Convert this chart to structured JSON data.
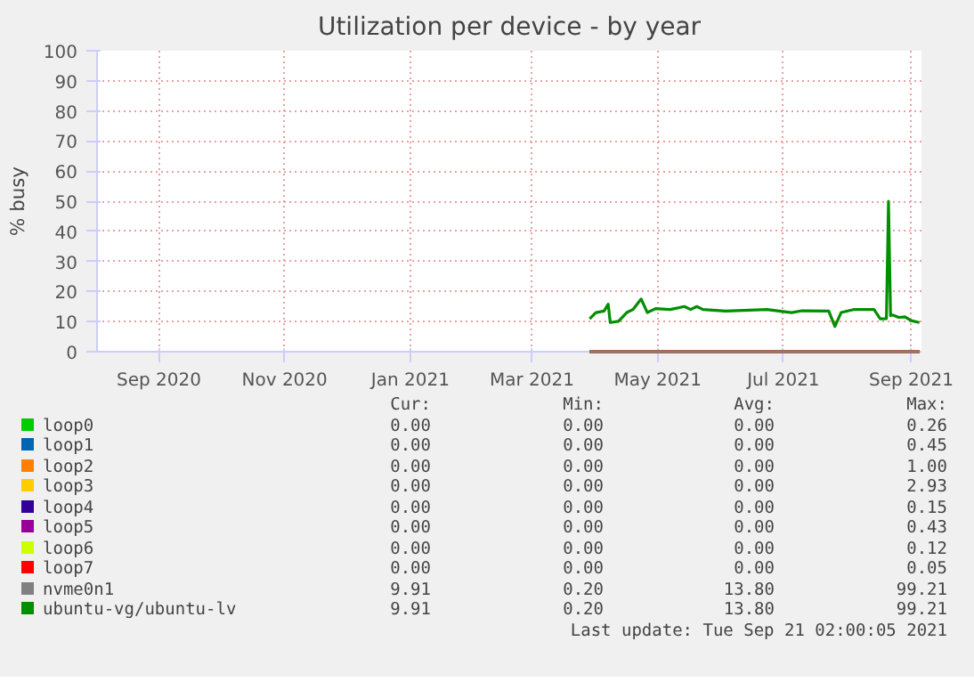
{
  "chart_data": {
    "type": "line",
    "title": "Utilization per device - by year",
    "ylabel": "% busy",
    "x": [
      "2021-04-13",
      "2021-04-16",
      "2021-04-20",
      "2021-04-22",
      "2021-04-23",
      "2021-04-27",
      "2021-05-01",
      "2021-05-04",
      "2021-05-08",
      "2021-05-11",
      "2021-05-15",
      "2021-05-22",
      "2021-05-29",
      "2021-06-01",
      "2021-06-04",
      "2021-06-07",
      "2021-06-18",
      "2021-07-08",
      "2021-07-20",
      "2021-07-25",
      "2021-08-07",
      "2021-08-10",
      "2021-08-13",
      "2021-08-19",
      "2021-08-29",
      "2021-09-01",
      "2021-09-04",
      "2021-09-05",
      "2021-09-06",
      "2021-09-07",
      "2021-09-10",
      "2021-09-13",
      "2021-09-16",
      "2021-09-20"
    ],
    "series": [
      {
        "name": "loop0",
        "color": "#00cc00",
        "values": [
          null,
          null,
          null,
          null,
          null,
          null,
          null,
          null,
          null,
          null,
          null,
          null,
          null,
          null,
          null,
          null,
          null,
          null,
          null,
          null,
          null,
          null,
          null,
          null,
          null,
          null,
          null,
          null,
          null,
          null,
          null,
          null,
          null,
          null
        ]
      },
      {
        "name": "loop1",
        "color": "#0066b3",
        "values": [
          null,
          null,
          null,
          null,
          null,
          null,
          null,
          null,
          null,
          null,
          null,
          null,
          null,
          null,
          null,
          null,
          null,
          null,
          null,
          null,
          null,
          null,
          null,
          null,
          null,
          null,
          null,
          null,
          null,
          null,
          null,
          null,
          null,
          null
        ]
      },
      {
        "name": "loop2",
        "color": "#ff8000",
        "values": [
          null,
          null,
          null,
          null,
          null,
          null,
          null,
          null,
          null,
          null,
          null,
          null,
          null,
          null,
          null,
          null,
          null,
          null,
          null,
          null,
          null,
          null,
          null,
          null,
          null,
          null,
          null,
          null,
          null,
          null,
          null,
          null,
          null,
          null
        ]
      },
      {
        "name": "loop3",
        "color": "#ffcc00",
        "values": [
          null,
          null,
          null,
          null,
          null,
          null,
          null,
          null,
          null,
          null,
          null,
          null,
          null,
          null,
          null,
          null,
          null,
          null,
          null,
          null,
          null,
          null,
          null,
          null,
          null,
          null,
          null,
          null,
          null,
          null,
          null,
          null,
          null,
          null
        ]
      },
      {
        "name": "loop4",
        "color": "#330099",
        "values": [
          null,
          null,
          null,
          null,
          null,
          null,
          null,
          null,
          null,
          null,
          null,
          null,
          null,
          null,
          null,
          null,
          null,
          null,
          null,
          null,
          null,
          null,
          null,
          null,
          null,
          null,
          null,
          null,
          null,
          null,
          null,
          null,
          null,
          null
        ]
      },
      {
        "name": "loop5",
        "color": "#990099",
        "values": [
          null,
          null,
          null,
          null,
          null,
          null,
          null,
          null,
          null,
          null,
          null,
          null,
          null,
          null,
          null,
          null,
          null,
          null,
          null,
          null,
          null,
          null,
          null,
          null,
          null,
          null,
          null,
          null,
          null,
          null,
          null,
          null,
          null,
          null
        ]
      },
      {
        "name": "loop6",
        "color": "#ccff00",
        "values": [
          null,
          null,
          null,
          null,
          null,
          null,
          null,
          null,
          null,
          null,
          null,
          null,
          null,
          null,
          null,
          null,
          null,
          null,
          null,
          null,
          null,
          null,
          null,
          null,
          null,
          null,
          null,
          null,
          null,
          null,
          null,
          null,
          null,
          null
        ]
      },
      {
        "name": "loop7",
        "color": "#ff0000",
        "values": [
          null,
          null,
          null,
          null,
          null,
          null,
          null,
          null,
          null,
          null,
          null,
          null,
          null,
          null,
          null,
          null,
          null,
          null,
          null,
          null,
          null,
          null,
          null,
          null,
          null,
          null,
          null,
          null,
          null,
          null,
          null,
          null,
          null,
          null
        ]
      },
      {
        "name": "nvme0n1",
        "color": "#808080",
        "values": [
          null,
          null,
          null,
          null,
          null,
          null,
          null,
          null,
          null,
          null,
          null,
          null,
          null,
          null,
          null,
          null,
          null,
          null,
          null,
          null,
          null,
          null,
          null,
          null,
          null,
          null,
          null,
          null,
          null,
          null,
          null,
          null,
          null,
          null
        ]
      },
      {
        "name": "ubuntu-vg/ubuntu-lv",
        "color": "#008f00",
        "values": [
          10.9,
          13.0,
          13.5,
          15.8,
          9.7,
          10.1,
          13.0,
          14,
          17.5,
          13,
          14.3,
          14,
          15,
          14,
          15,
          14,
          13.5,
          14,
          13,
          13.6,
          13.5,
          8.4,
          13,
          14,
          14,
          10.9,
          11,
          50,
          12,
          12.2,
          11.4,
          11.6,
          10.3,
          9.7
        ]
      }
    ],
    "xlim": [
      "2020-08-17",
      "2021-09-21"
    ],
    "xticks": [
      {
        "value": "2020-09-16",
        "label": "Sep 2020"
      },
      {
        "value": "2020-11-16",
        "label": "Nov 2020"
      },
      {
        "value": "2021-01-16",
        "label": "Jan 2021"
      },
      {
        "value": "2021-03-16",
        "label": "Mar 2021"
      },
      {
        "value": "2021-05-16",
        "label": "May 2021"
      },
      {
        "value": "2021-07-16",
        "label": "Jul 2021"
      },
      {
        "value": "2021-09-16",
        "label": "Sep 2021"
      }
    ],
    "ylim": [
      0,
      100
    ],
    "yticks": [
      0,
      10,
      20,
      30,
      40,
      50,
      60,
      70,
      80,
      90,
      100
    ],
    "grid": true,
    "legend": "bottom",
    "line_style": "solid",
    "annotations": [
      "Cur:",
      "Min:",
      "Avg:",
      "Max:",
      "0.00",
      "0.00",
      "0.00",
      "0.26",
      "0.00",
      "0.00",
      "0.00",
      "0.45",
      "0.00",
      "0.00",
      "0.00",
      "1.00",
      "0.00",
      "0.00",
      "0.00",
      "2.93",
      "0.00",
      "0.00",
      "0.00",
      "0.15",
      "0.00",
      "0.00",
      "0.00",
      "0.43",
      "0.00",
      "0.00",
      "0.00",
      "0.12",
      "0.00",
      "0.00",
      "0.00",
      "0.05",
      "9.91",
      "0.20",
      "13.80",
      "99.21",
      "9.91",
      "0.20",
      "13.80",
      "99.21",
      "Last update: Tue Sep 21 02:00:05 2021"
    ]
  }
}
